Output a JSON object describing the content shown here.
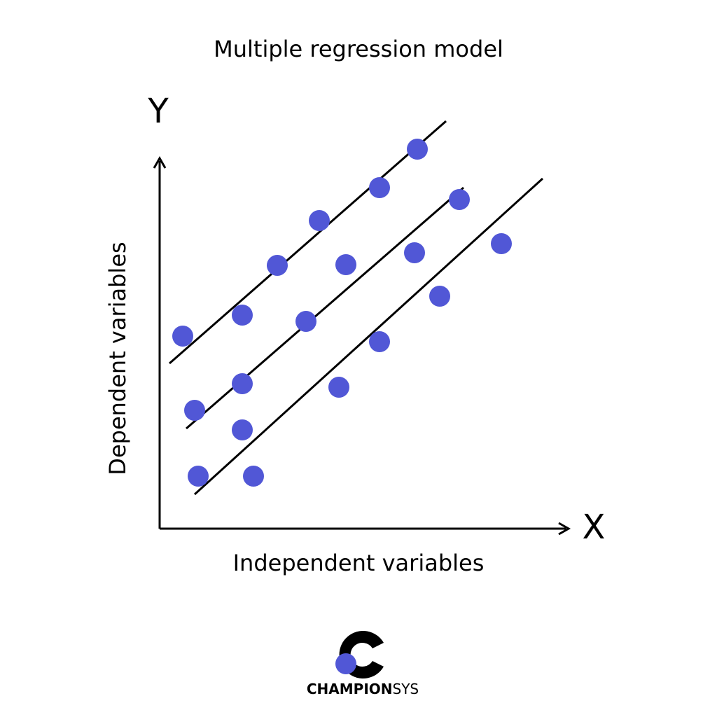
{
  "header": {
    "title": "Multiple regression model"
  },
  "axes": {
    "y": "Y",
    "x": "X",
    "y_label": "Dependent variables",
    "x_label": "Independent variables"
  },
  "logo": {
    "bold": "CHAMPION",
    "regular": "SYS"
  }
}
